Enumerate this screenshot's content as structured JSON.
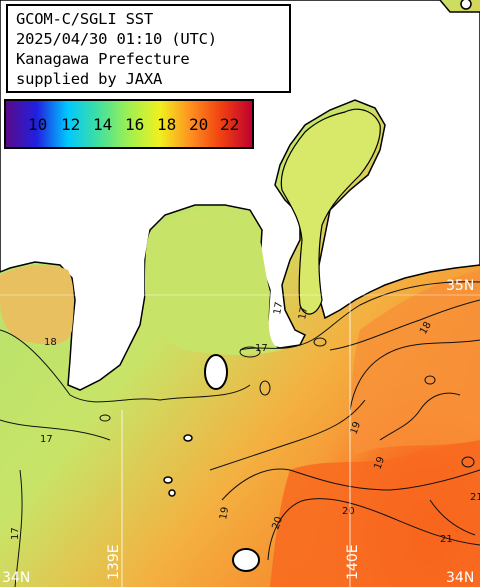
{
  "title": {
    "line1": "GCOM-C/SGLI SST",
    "line2": "2025/04/30 01:10 (UTC)",
    "line3": "Kanagawa Prefecture",
    "line4": "supplied by JAXA"
  },
  "legend": {
    "ticks": [
      "10",
      "12",
      "14",
      "16",
      "18",
      "20",
      "22"
    ],
    "colors": [
      "#5a0a8a",
      "#2020e0",
      "#00c8ff",
      "#40e0a0",
      "#a0f050",
      "#f0f020",
      "#ff9020",
      "#f04010",
      "#c00030"
    ]
  },
  "grid": {
    "lon_labels": [
      "139E",
      "140E"
    ],
    "lat_labels_left": [
      "34N"
    ],
    "lat_labels_right": [
      "34N"
    ],
    "edge_label_top_right": "35N"
  },
  "isotherms": [
    "17",
    "18",
    "19",
    "20",
    "21"
  ],
  "colors": {
    "land": "#ffffff",
    "sea_cool": "#a8e070",
    "sea_mid": "#d8e060",
    "sea_warm": "#f8a040",
    "sea_hot": "#f86020",
    "coast": "#000000"
  }
}
